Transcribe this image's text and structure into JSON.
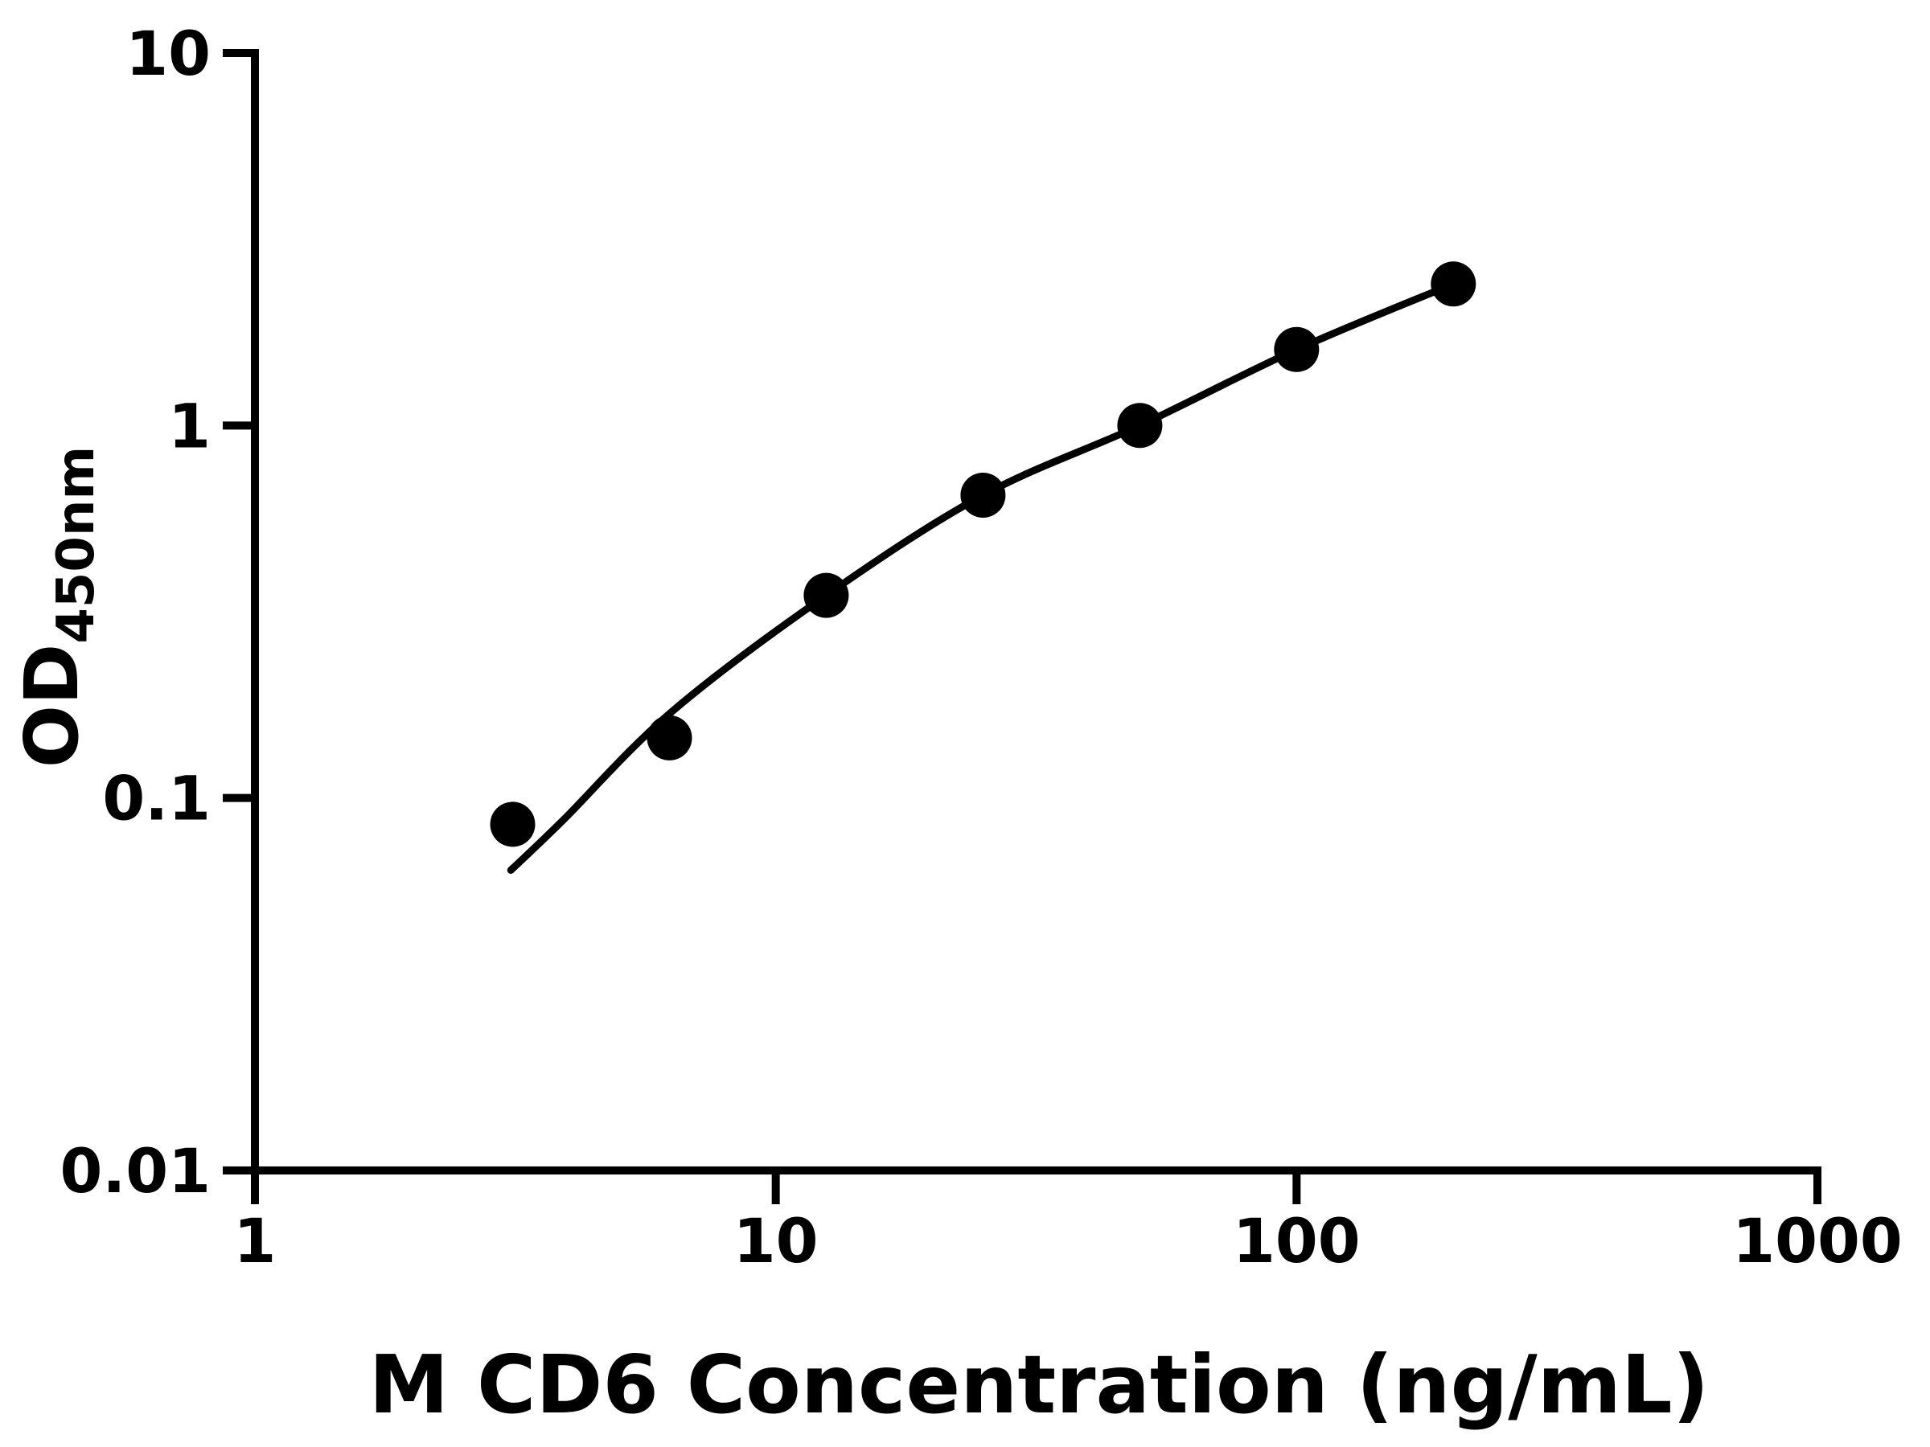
{
  "figure": {
    "background_color": "#ffffff",
    "ink_color": "#000000"
  },
  "chart_data": {
    "type": "scatter",
    "title": "",
    "xlabel": "M CD6 Concentration (ng/mL)",
    "ylabel_main": "OD",
    "ylabel_sub": "450nm",
    "x_scale": "log",
    "y_scale": "log",
    "grid": false,
    "legend": "none",
    "xlim": [
      1,
      1000
    ],
    "ylim": [
      0.01,
      10
    ],
    "x_tick_values": [
      1,
      10,
      100,
      1000
    ],
    "x_tick_labels": [
      "1",
      "10",
      "100",
      "1000"
    ],
    "y_tick_values": [
      0.01,
      0.1,
      1,
      10
    ],
    "y_tick_labels": [
      "0.01",
      "0.1",
      "1",
      "10"
    ],
    "series": [
      {
        "name": "standard-points",
        "marker": "filled-circle",
        "color": "#000000",
        "x": [
          3.125,
          6.25,
          12.5,
          25,
          50,
          100,
          200
        ],
        "y": [
          0.085,
          0.145,
          0.35,
          0.65,
          1.0,
          1.6,
          2.4
        ]
      }
    ],
    "fit_curve": {
      "name": "four-parameter-fit-curve",
      "color": "#000000",
      "x": [
        3.1,
        3.9,
        6.3,
        12.5,
        25,
        50,
        100,
        200
      ],
      "y": [
        0.064,
        0.087,
        0.17,
        0.35,
        0.65,
        1.0,
        1.6,
        2.4
      ]
    }
  }
}
